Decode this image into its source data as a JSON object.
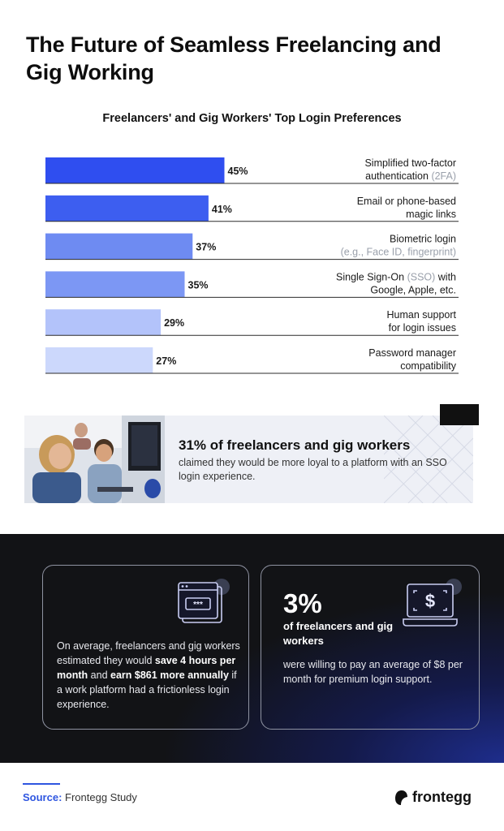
{
  "title": "The Future of Seamless Freelancing and Gig Working",
  "chart_data": {
    "type": "bar",
    "orientation": "horizontal",
    "title": "Freelancers' and Gig Workers' Top Login Preferences",
    "xlim": [
      0,
      100
    ],
    "categories": [
      {
        "line1": "Simplified two-factor",
        "line2": "authentication",
        "line2_muted": "(2FA)"
      },
      {
        "line1": "Email or phone-based",
        "line2": "magic links",
        "line2_muted": ""
      },
      {
        "line1": "Biometric login",
        "line2": "",
        "line2_muted": "(e.g., Face ID, fingerprint)"
      },
      {
        "line1": "Single Sign-On",
        "line1_muted": "(SSO)",
        "line1_after": "with",
        "line2": "Google, Apple, etc.",
        "line2_muted": ""
      },
      {
        "line1": "Human support",
        "line2": "for login issues",
        "line2_muted": ""
      },
      {
        "line1": "Password manager",
        "line2": "compatibility",
        "line2_muted": ""
      }
    ],
    "values": [
      45,
      41,
      37,
      35,
      29,
      27
    ],
    "value_labels": [
      "45%",
      "41%",
      "37%",
      "35%",
      "29%",
      "27%"
    ],
    "colors": [
      "#2f4ef0",
      "#3d5ef0",
      "#6e8bf2",
      "#7c97f4",
      "#b3c3fa",
      "#ccd8fc"
    ]
  },
  "promo": {
    "stat": "31% of freelancers and gig workers",
    "body": "claimed they would be more loyal to a platform with an SSO login experience."
  },
  "card_left": {
    "text_1": "On average, freelancers and gig workers estimated they would ",
    "bold_1": "save 4 hours per month",
    "text_2": " and ",
    "bold_2": "earn $861 more annually",
    "text_3": " if a work platform had a frictionless login experience.",
    "icon": "password-window-icon",
    "icon_text": "***"
  },
  "card_right": {
    "stat": "3%",
    "label": "of freelancers and gig workers",
    "body": "were willing to pay an average of $8 per month for premium login support.",
    "icon": "laptop-dollar-icon",
    "icon_text": "$"
  },
  "footer": {
    "source_label": "Source:",
    "source_text": " Frontegg Study",
    "logo_text": "frontegg"
  },
  "colors": {
    "accent": "#2f56e0",
    "dark_bg": "#121316",
    "gradient_blue": "#1e2d8c"
  }
}
